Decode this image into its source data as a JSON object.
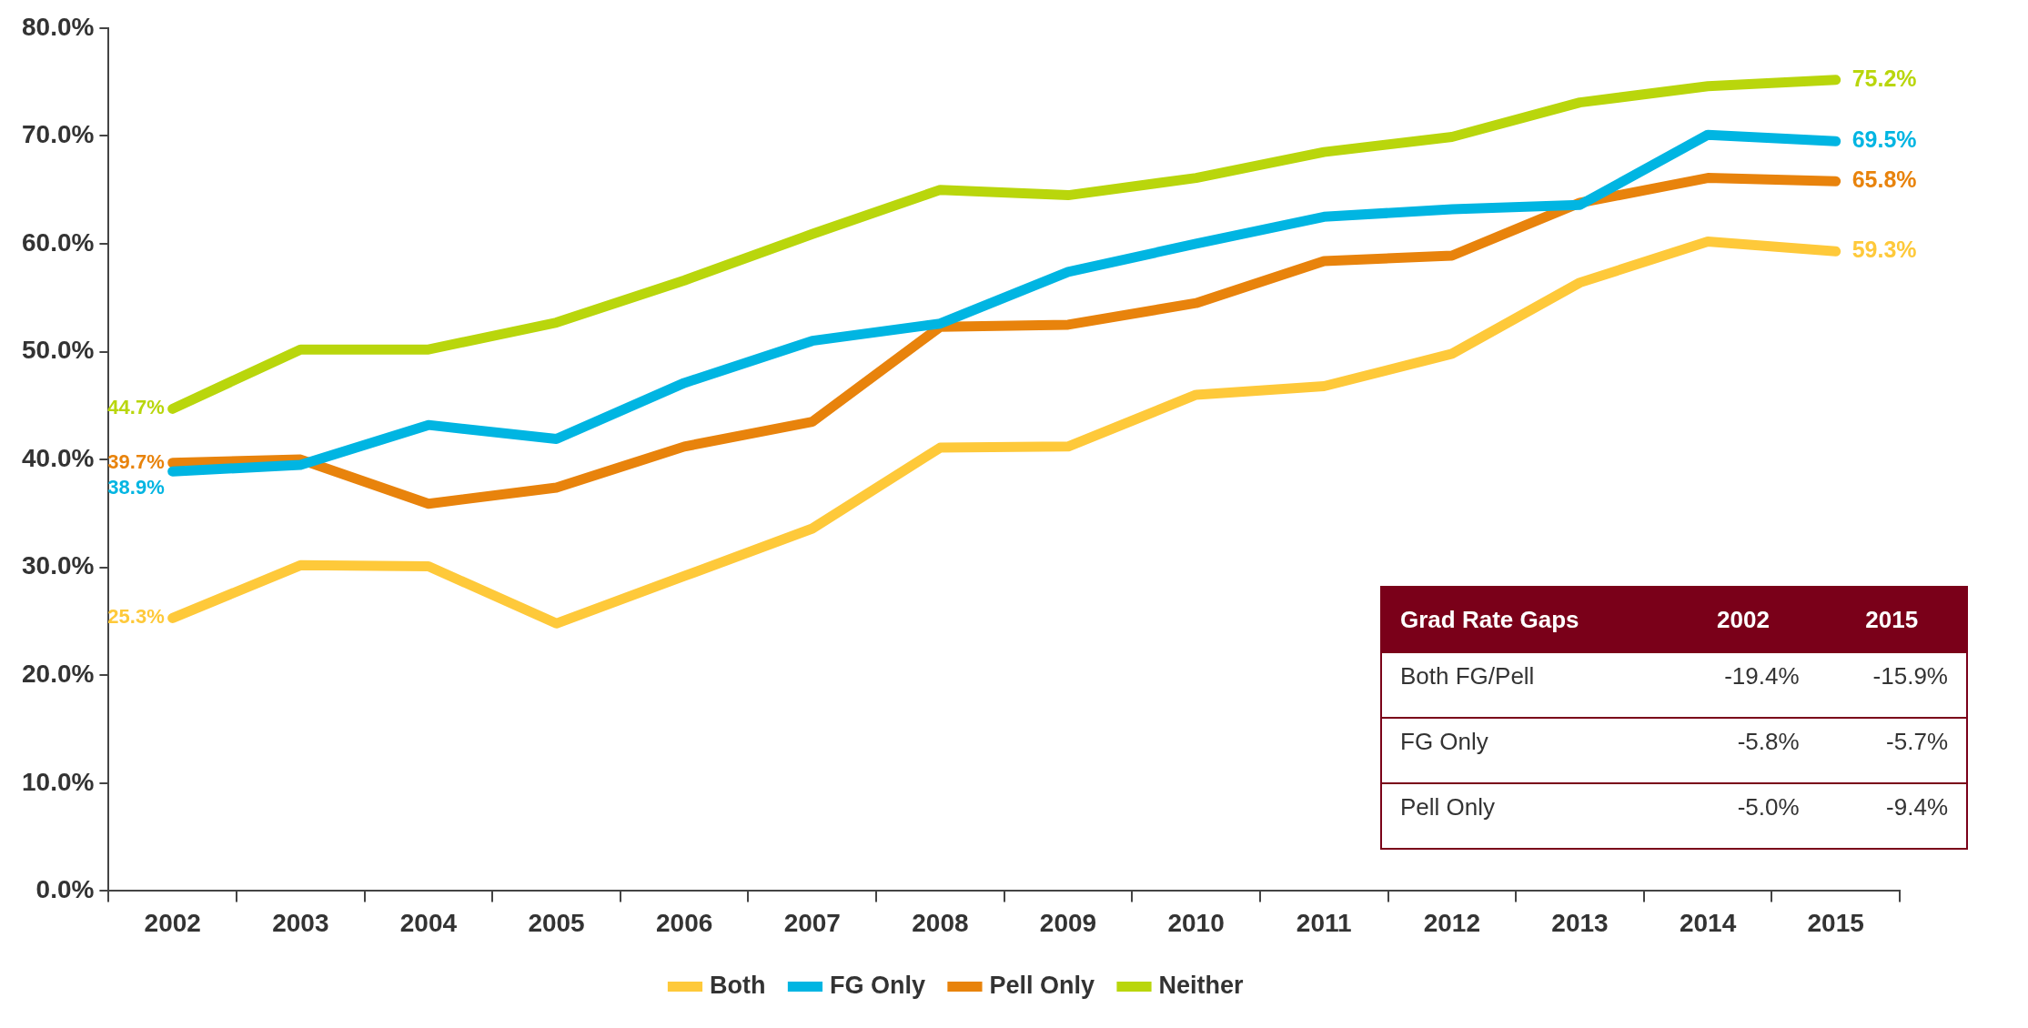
{
  "chart_data": {
    "type": "line",
    "categories": [
      "2002",
      "2003",
      "2004",
      "2005",
      "2006",
      "2007",
      "2008",
      "2009",
      "2010",
      "2011",
      "2012",
      "2013",
      "2014",
      "2015"
    ],
    "series": [
      {
        "name": "Both",
        "color": "#fec93a",
        "values": [
          25.3,
          30.2,
          30.1,
          24.8,
          29.2,
          33.6,
          41.1,
          41.2,
          46.0,
          46.8,
          49.8,
          56.4,
          60.2,
          59.3
        ],
        "value_labels": [
          "25.3%",
          null,
          null,
          null,
          null,
          null,
          null,
          null,
          null,
          null,
          null,
          null,
          null,
          "59.3%"
        ]
      },
      {
        "name": "FG Only",
        "color": "#00b5e2",
        "values": [
          38.9,
          39.5,
          43.2,
          41.9,
          47.1,
          51.0,
          52.6,
          57.4,
          60.0,
          62.5,
          63.2,
          63.6,
          70.1,
          69.5
        ],
        "value_labels": [
          "38.9%",
          null,
          null,
          null,
          null,
          null,
          null,
          null,
          null,
          null,
          null,
          null,
          null,
          "69.5%"
        ]
      },
      {
        "name": "Pell Only",
        "color": "#e8830c",
        "values": [
          39.7,
          40.0,
          35.9,
          37.4,
          41.2,
          43.5,
          52.3,
          52.5,
          54.5,
          58.4,
          58.9,
          63.8,
          66.1,
          65.8
        ],
        "value_labels": [
          "39.7%",
          null,
          null,
          null,
          null,
          null,
          null,
          null,
          null,
          null,
          null,
          null,
          null,
          "65.8%"
        ]
      },
      {
        "name": "Neither",
        "color": "#b9d60c",
        "values": [
          44.7,
          50.2,
          50.2,
          52.7,
          56.6,
          60.9,
          65.0,
          64.5,
          66.1,
          68.5,
          69.9,
          73.1,
          74.6,
          75.2
        ],
        "value_labels": [
          "44.7%",
          null,
          null,
          null,
          null,
          null,
          null,
          null,
          null,
          null,
          null,
          null,
          null,
          "75.2%"
        ]
      }
    ],
    "ylim": [
      0,
      80
    ],
    "yticks": [
      {
        "value": 0,
        "label": "0.0%"
      },
      {
        "value": 10,
        "label": "10.0%"
      },
      {
        "value": 20,
        "label": "20.0%"
      },
      {
        "value": 30,
        "label": "30.0%"
      },
      {
        "value": 40,
        "label": "40.0%"
      },
      {
        "value": 50,
        "label": "50.0%"
      },
      {
        "value": 60,
        "label": "60.0%"
      },
      {
        "value": 70,
        "label": "70.0%"
      },
      {
        "value": 80,
        "label": "80.0%"
      }
    ],
    "grid": false,
    "legend": "bottom",
    "marker": "none",
    "line_style": "solid",
    "annotations": [
      "Grad Rate Gaps",
      "2002",
      "2015",
      "Both FG/Pell",
      "-19.4%",
      "-15.9%",
      "FG Only",
      "-5.8%",
      "-5.7%",
      "Pell Only",
      "-5.0%",
      "-9.4%"
    ]
  }
}
